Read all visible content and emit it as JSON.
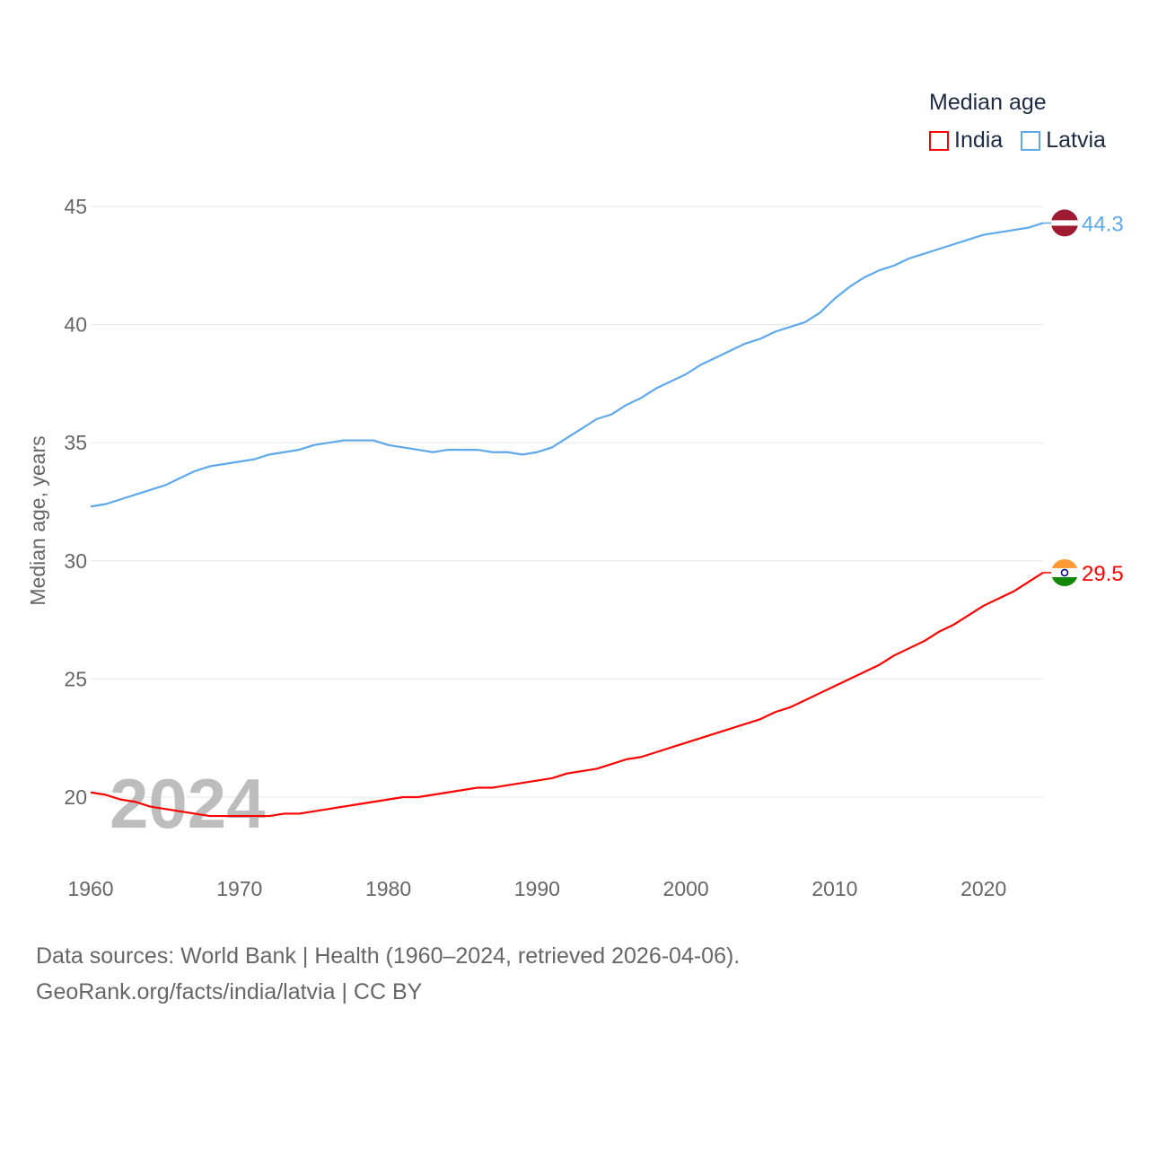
{
  "chart_data": {
    "type": "line",
    "title": "Median age",
    "ylabel": "Median age, years",
    "xlabel": "",
    "ylim": [
      18,
      46
    ],
    "xlim": [
      1960,
      2024
    ],
    "yticks": [
      20,
      25,
      30,
      35,
      40,
      45
    ],
    "xticks": [
      1960,
      1970,
      1980,
      1990,
      2000,
      2010,
      2020
    ],
    "grid": true,
    "legend_placement": "top-right",
    "year_label": "2024",
    "x": [
      1960,
      1961,
      1962,
      1963,
      1964,
      1965,
      1966,
      1967,
      1968,
      1969,
      1970,
      1971,
      1972,
      1973,
      1974,
      1975,
      1976,
      1977,
      1978,
      1979,
      1980,
      1981,
      1982,
      1983,
      1984,
      1985,
      1986,
      1987,
      1988,
      1989,
      1990,
      1991,
      1992,
      1993,
      1994,
      1995,
      1996,
      1997,
      1998,
      1999,
      2000,
      2001,
      2002,
      2003,
      2004,
      2005,
      2006,
      2007,
      2008,
      2009,
      2010,
      2011,
      2012,
      2013,
      2014,
      2015,
      2016,
      2017,
      2018,
      2019,
      2020,
      2021,
      2022,
      2023,
      2024
    ],
    "series": [
      {
        "name": "India",
        "color": "#ff0000",
        "end_label": "29.5",
        "values": [
          20.2,
          20.1,
          19.9,
          19.8,
          19.6,
          19.5,
          19.4,
          19.3,
          19.2,
          19.2,
          19.2,
          19.2,
          19.2,
          19.3,
          19.3,
          19.4,
          19.5,
          19.6,
          19.7,
          19.8,
          19.9,
          20.0,
          20.0,
          20.1,
          20.2,
          20.3,
          20.4,
          20.4,
          20.5,
          20.6,
          20.7,
          20.8,
          21.0,
          21.1,
          21.2,
          21.4,
          21.6,
          21.7,
          21.9,
          22.1,
          22.3,
          22.5,
          22.7,
          22.9,
          23.1,
          23.3,
          23.6,
          23.8,
          24.1,
          24.4,
          24.7,
          25.0,
          25.3,
          25.6,
          26.0,
          26.3,
          26.6,
          27.0,
          27.3,
          27.7,
          28.1,
          28.4,
          28.7,
          29.1,
          29.5
        ]
      },
      {
        "name": "Latvia",
        "color": "#5ea8ec",
        "end_label": "44.3",
        "values": [
          32.3,
          32.4,
          32.6,
          32.8,
          33.0,
          33.2,
          33.5,
          33.8,
          34.0,
          34.1,
          34.2,
          34.3,
          34.5,
          34.6,
          34.7,
          34.9,
          35.0,
          35.1,
          35.1,
          35.1,
          34.9,
          34.8,
          34.7,
          34.6,
          34.7,
          34.7,
          34.7,
          34.6,
          34.6,
          34.5,
          34.6,
          34.8,
          35.2,
          35.6,
          36.0,
          36.2,
          36.6,
          36.9,
          37.3,
          37.6,
          37.9,
          38.3,
          38.6,
          38.9,
          39.2,
          39.4,
          39.7,
          39.9,
          40.1,
          40.5,
          41.1,
          41.6,
          42.0,
          42.3,
          42.5,
          42.8,
          43.0,
          43.2,
          43.4,
          43.6,
          43.8,
          43.9,
          44.0,
          44.1,
          44.3
        ]
      }
    ]
  },
  "footer": {
    "line1": "Data sources: World Bank | Health (1960–2024, retrieved 2026-04-06).",
    "line2": "GeoRank.org/facts/india/latvia | CC BY"
  }
}
